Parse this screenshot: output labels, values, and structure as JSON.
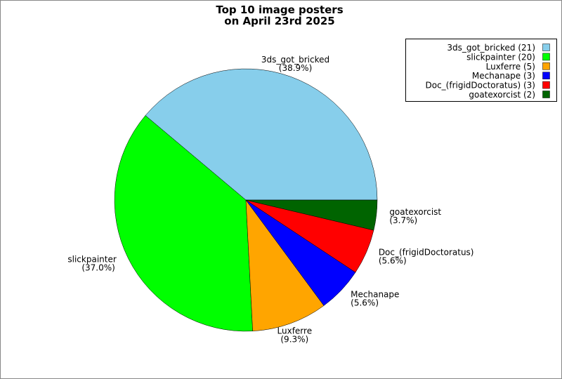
{
  "chart_data": {
    "type": "pie",
    "title": [
      "Top 10 image posters",
      "on April 23rd 2025"
    ],
    "categories": [
      "3ds_got_bricked",
      "slickpainter",
      "Luxferre",
      "Mechanape",
      "Doc_(frigidDoctoratus)",
      "goatexorcist"
    ],
    "values": [
      38.9,
      37.0,
      9.3,
      5.6,
      5.6,
      3.7
    ],
    "value_labels": [
      "(38.9%)",
      "(37.0%)",
      "(9.3%)",
      "(5.6%)",
      "(5.6%)",
      "(3.7%)"
    ],
    "legend": [
      "3ds_got_bricked (21)",
      "slickpainter (20)",
      "Luxferre (5)",
      "Mechanape (3)",
      "Doc_(frigidDoctoratus) (3)",
      "goatexorcist (2)"
    ],
    "colors": [
      "#87ceeb",
      "#00ff00",
      "#ffa500",
      "#0000ff",
      "#ff0000",
      "#006400"
    ],
    "legend_position": "upper right"
  }
}
